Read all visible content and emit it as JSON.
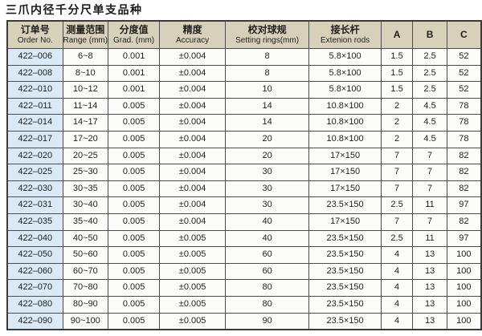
{
  "title": "三爪内径千分尺单支品种",
  "colors": {
    "header_bg": "#d7d1ba",
    "order_col_bg": "#d9eaf6",
    "cell_bg": "#fcfcf8",
    "border": "#4d4d4d",
    "text": "#1f1f1f"
  },
  "table": {
    "headers": [
      {
        "zh": "订单号",
        "en": "Order No."
      },
      {
        "zh": "测量范围",
        "en": "Range (mm)"
      },
      {
        "zh": "分度值",
        "en": "Grad. (mm)"
      },
      {
        "zh": "精度",
        "en": "Accuracy"
      },
      {
        "zh": "校对球规",
        "en": "Setting rings(mm)"
      },
      {
        "zh": "接长杆",
        "en": "Extenion rods"
      },
      {
        "zh": "A",
        "en": ""
      },
      {
        "zh": "B",
        "en": ""
      },
      {
        "zh": "C",
        "en": ""
      }
    ],
    "rows": [
      [
        "422–006",
        "6~8",
        "0.001",
        "±0.004",
        "8",
        "5.8×100",
        "1.5",
        "2.5",
        "52"
      ],
      [
        "422–008",
        "8~10",
        "0.001",
        "±0.004",
        "8",
        "5.8×100",
        "1.5",
        "2.5",
        "52"
      ],
      [
        "422–010",
        "10~12",
        "0.001",
        "±0.004",
        "10",
        "5.8×100",
        "1.5",
        "2.5",
        "52"
      ],
      [
        "422–011",
        "11~14",
        "0.005",
        "±0.004",
        "14",
        "10.8×100",
        "2",
        "4.5",
        "78"
      ],
      [
        "422–014",
        "14~17",
        "0.005",
        "±0.004",
        "14",
        "10.8×100",
        "2",
        "4.5",
        "78"
      ],
      [
        "422–017",
        "17~20",
        "0.005",
        "±0.004",
        "20",
        "10.8×100",
        "2",
        "4.5",
        "78"
      ],
      [
        "422–020",
        "20~25",
        "0.005",
        "±0.004",
        "20",
        "17×150",
        "7",
        "7",
        "82"
      ],
      [
        "422–025",
        "25~30",
        "0.005",
        "±0.004",
        "30",
        "17×150",
        "7",
        "7",
        "82"
      ],
      [
        "422–030",
        "30~35",
        "0.005",
        "±0.004",
        "30",
        "17×150",
        "7",
        "7",
        "82"
      ],
      [
        "422–031",
        "30~40",
        "0.005",
        "±0.004",
        "30",
        "23.5×150",
        "2.5",
        "11",
        "97"
      ],
      [
        "422–035",
        "35~40",
        "0.005",
        "±0.004",
        "40",
        "17×150",
        "7",
        "7",
        "82"
      ],
      [
        "422–040",
        "40~50",
        "0.005",
        "±0.005",
        "40",
        "23.5×150",
        "2.5",
        "11",
        "97"
      ],
      [
        "422–050",
        "50~60",
        "0.005",
        "±0.005",
        "60",
        "23.5×150",
        "4",
        "13",
        "100"
      ],
      [
        "422–060",
        "60~70",
        "0.005",
        "±0.005",
        "60",
        "23.5×150",
        "4",
        "13",
        "100"
      ],
      [
        "422–070",
        "70~80",
        "0.005",
        "±0.005",
        "80",
        "23.5×150",
        "4",
        "13",
        "100"
      ],
      [
        "422–080",
        "80~90",
        "0.005",
        "±0.005",
        "80",
        "23.5×150",
        "4",
        "13",
        "100"
      ],
      [
        "422–090",
        "90~100",
        "0.005",
        "±0.005",
        "90",
        "23.5×150",
        "4",
        "13",
        "100"
      ]
    ],
    "column_keys": [
      "order-no",
      "range",
      "graduation",
      "accuracy",
      "setting-ring",
      "extension-rod",
      "a",
      "b",
      "c"
    ]
  }
}
